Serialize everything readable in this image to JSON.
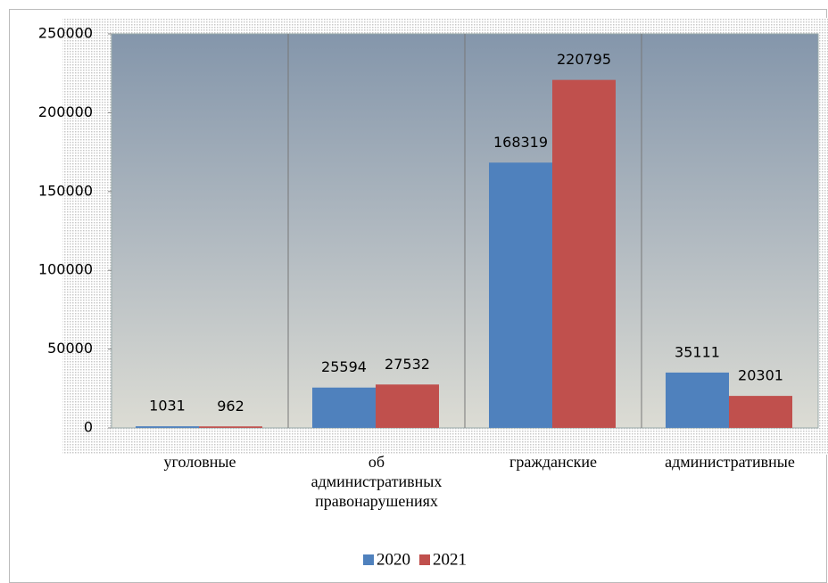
{
  "chart_data": {
    "type": "bar",
    "categories": [
      "уголовные",
      "об административных правонарушениях",
      "гражданские",
      "административные"
    ],
    "series": [
      {
        "name": "2020",
        "color": "#4f81bd",
        "values": [
          1031,
          25594,
          168319,
          35111
        ]
      },
      {
        "name": "2021",
        "color": "#c0504d",
        "values": [
          962,
          27532,
          220795,
          20301
        ]
      }
    ],
    "ylim": [
      0,
      250000
    ],
    "yticks": [
      0,
      50000,
      100000,
      150000,
      200000,
      250000
    ],
    "legend": "bottom"
  }
}
